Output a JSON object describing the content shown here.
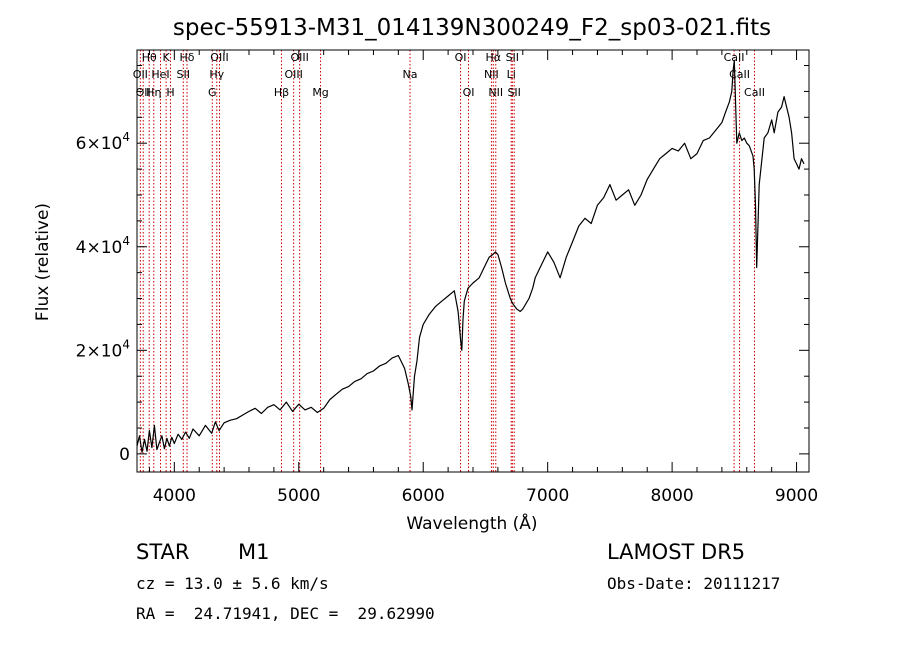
{
  "chart_data": {
    "type": "line",
    "title": "spec-55913-M31_014139N300249_F2_sp03-021.fits",
    "xlabel": "Wavelength (Å)",
    "ylabel": "Flux (relative)",
    "xlim": [
      3700,
      9100
    ],
    "ylim": [
      -3500,
      78000
    ],
    "x_ticks": [
      4000,
      5000,
      6000,
      7000,
      8000,
      9000
    ],
    "x_tick_labels": [
      "4000",
      "5000",
      "6000",
      "7000",
      "8000",
      "9000"
    ],
    "y_ticks": [
      {
        "value": 0,
        "mantissa": "0",
        "exponent": ""
      },
      {
        "value": 20000,
        "mantissa": "2×10",
        "exponent": "4"
      },
      {
        "value": 40000,
        "mantissa": "4×10",
        "exponent": "4"
      },
      {
        "value": 60000,
        "mantissa": "6×10",
        "exponent": "4"
      }
    ],
    "grid": false,
    "series_color": "#000000",
    "line_color": "#cc0000",
    "spectrum": {
      "x": [
        3700,
        3720,
        3740,
        3760,
        3780,
        3800,
        3820,
        3840,
        3860,
        3880,
        3900,
        3920,
        3940,
        3960,
        3980,
        4000,
        4030,
        4060,
        4090,
        4120,
        4150,
        4200,
        4250,
        4300,
        4330,
        4360,
        4400,
        4450,
        4500,
        4550,
        4600,
        4650,
        4700,
        4750,
        4800,
        4850,
        4900,
        4950,
        5000,
        5050,
        5100,
        5150,
        5200,
        5250,
        5300,
        5350,
        5400,
        5450,
        5500,
        5550,
        5600,
        5650,
        5700,
        5750,
        5800,
        5850,
        5880,
        5900,
        5910,
        5930,
        5950,
        5970,
        6000,
        6050,
        6100,
        6150,
        6200,
        6250,
        6280,
        6300,
        6310,
        6320,
        6330,
        6360,
        6400,
        6450,
        6500,
        6530,
        6560,
        6580,
        6600,
        6630,
        6660,
        6700,
        6720,
        6750,
        6780,
        6800,
        6850,
        6880,
        6900,
        6950,
        7000,
        7050,
        7100,
        7150,
        7200,
        7250,
        7300,
        7350,
        7400,
        7450,
        7500,
        7550,
        7600,
        7650,
        7700,
        7750,
        7800,
        7850,
        7900,
        7950,
        8000,
        8050,
        8100,
        8150,
        8200,
        8250,
        8300,
        8350,
        8400,
        8430,
        8460,
        8480,
        8490,
        8500,
        8520,
        8540,
        8560,
        8580,
        8600,
        8620,
        8650,
        8660,
        8670,
        8680,
        8700,
        8740,
        8770,
        8800,
        8820,
        8850,
        8880,
        8900,
        8920,
        8940,
        8960,
        8980,
        9000,
        9020,
        9040,
        9060
      ],
      "y": [
        1500,
        3500,
        300,
        2800,
        500,
        4500,
        1200,
        5500,
        800,
        2200,
        3500,
        1000,
        3000,
        1500,
        3200,
        2000,
        3800,
        2800,
        4200,
        3000,
        4800,
        3500,
        5500,
        4000,
        6200,
        4500,
        6000,
        6500,
        6800,
        7500,
        8200,
        8800,
        7800,
        9000,
        9500,
        8500,
        10000,
        8200,
        9600,
        8500,
        9000,
        8000,
        8800,
        10500,
        11500,
        12500,
        13000,
        14000,
        14500,
        15500,
        16000,
        17000,
        17500,
        18500,
        19000,
        16500,
        13500,
        11000,
        8500,
        15000,
        18000,
        22500,
        25000,
        27000,
        28500,
        29500,
        30500,
        31500,
        27500,
        22000,
        20000,
        26000,
        29500,
        32000,
        33000,
        34000,
        36500,
        38000,
        38500,
        39000,
        38500,
        36000,
        33000,
        30000,
        29000,
        28000,
        27500,
        28000,
        30000,
        32000,
        34000,
        36500,
        39000,
        37000,
        34000,
        38000,
        41000,
        44000,
        45500,
        44500,
        48000,
        49500,
        52000,
        49000,
        50000,
        51000,
        48000,
        50000,
        53000,
        55000,
        57000,
        58000,
        59000,
        58500,
        60000,
        57000,
        58000,
        60500,
        61000,
        62500,
        64000,
        66000,
        68000,
        70000,
        74000,
        76000,
        60000,
        62000,
        60500,
        61000,
        60000,
        59500,
        57500,
        55000,
        48000,
        36000,
        52000,
        61000,
        62000,
        64500,
        62000,
        66000,
        67000,
        69000,
        67000,
        65000,
        62000,
        57000,
        56000,
        55000,
        57000,
        56000
      ]
    },
    "lines": [
      {
        "x": 3727,
        "label": "OII",
        "row": 1
      },
      {
        "x": 3750,
        "label": "OII",
        "row": 2
      },
      {
        "x": 3798,
        "label": "Hθ",
        "row": 0
      },
      {
        "x": 3835,
        "label": "Hη",
        "row": 2
      },
      {
        "x": 3889,
        "label": "HeI",
        "row": 1
      },
      {
        "x": 3934,
        "label": "K",
        "row": 0
      },
      {
        "x": 3969,
        "label": "H",
        "row": 2
      },
      {
        "x": 4072,
        "label": "SII",
        "row": 1
      },
      {
        "x": 4102,
        "label": "Hδ",
        "row": 0
      },
      {
        "x": 4305,
        "label": "G",
        "row": 2
      },
      {
        "x": 4341,
        "label": "Hγ",
        "row": 1
      },
      {
        "x": 4363,
        "label": "OIII",
        "row": 0
      },
      {
        "x": 4861,
        "label": "Hβ",
        "row": 2
      },
      {
        "x": 4959,
        "label": "OIII",
        "row": 1
      },
      {
        "x": 5007,
        "label": "OIII",
        "row": 0
      },
      {
        "x": 5175,
        "label": "Mg",
        "row": 2
      },
      {
        "x": 5894,
        "label": "Na",
        "row": 1
      },
      {
        "x": 6300,
        "label": "OI",
        "row": 0
      },
      {
        "x": 6364,
        "label": "OI",
        "row": 2
      },
      {
        "x": 6548,
        "label": "NII",
        "row": 1
      },
      {
        "x": 6563,
        "label": "Hα",
        "row": 0
      },
      {
        "x": 6583,
        "label": "NII",
        "row": 2
      },
      {
        "x": 6707,
        "label": "Li",
        "row": 1
      },
      {
        "x": 6716,
        "label": "SII",
        "row": 0
      },
      {
        "x": 6731,
        "label": "SII",
        "row": 2
      },
      {
        "x": 8498,
        "label": "CaII",
        "row": 0
      },
      {
        "x": 8542,
        "label": "CaII",
        "row": 1
      },
      {
        "x": 8662,
        "label": "CaII",
        "row": 2
      }
    ]
  },
  "info": {
    "class": "STAR",
    "subclass": "M1",
    "cz": "cz = 13.0 ± 5.6 km/s",
    "radec": "RA =  24.71941, DEC =  29.62990",
    "survey": "LAMOST DR5",
    "obsdate": "Obs-Date: 20111217"
  }
}
